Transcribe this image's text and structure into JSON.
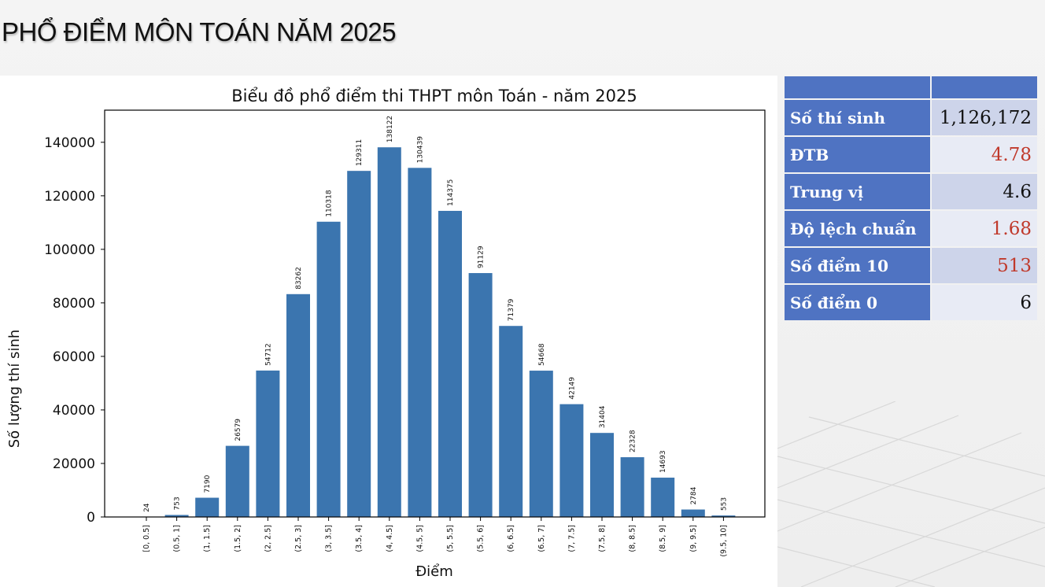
{
  "page": {
    "title": "PHỔ ĐIỂM MÔN TOÁN NĂM 2025"
  },
  "chart_data": {
    "type": "bar",
    "title": "Biểu đồ phổ điểm thi THPT môn Toán - năm 2025",
    "xlabel": "Điểm",
    "ylabel": "Số lượng thí sinh",
    "categories": [
      "[0, 0.5]",
      "(0.5, 1]",
      "(1, 1.5]",
      "(1.5, 2]",
      "(2, 2.5]",
      "(2.5, 3]",
      "(3, 3.5]",
      "(3.5, 4]",
      "(4, 4.5]",
      "(4.5, 5]",
      "(5, 5.5]",
      "(5.5, 6]",
      "(6, 6.5]",
      "(6.5, 7]",
      "(7, 7.5]",
      "(7.5, 8]",
      "(8, 8.5]",
      "(8.5, 9]",
      "(9, 9.5]",
      "(9.5, 10]"
    ],
    "values": [
      24,
      753,
      7190,
      26579,
      54712,
      83262,
      110318,
      129311,
      138122,
      130439,
      114375,
      91129,
      71379,
      54668,
      42149,
      31404,
      22328,
      14693,
      2784,
      553
    ],
    "ylim": [
      0,
      152000
    ],
    "yticks": [
      0,
      20000,
      40000,
      60000,
      80000,
      100000,
      120000,
      140000
    ],
    "bar_color": "#3b75af",
    "grid": false
  },
  "stats": {
    "rows": [
      {
        "label": "Số thí sinh",
        "value": "1,126,172",
        "value_color": "#111111"
      },
      {
        "label": "ĐTB",
        "value": "4.78",
        "value_color": "#c0392b"
      },
      {
        "label": "Trung vị",
        "value": "4.6",
        "value_color": "#111111"
      },
      {
        "label": "Độ lệch chuẩn",
        "value": "1.68",
        "value_color": "#c0392b"
      },
      {
        "label": "Số điểm 10",
        "value": "513",
        "value_color": "#c0392b"
      },
      {
        "label": "Số điểm 0",
        "value": "6",
        "value_color": "#111111"
      }
    ]
  }
}
